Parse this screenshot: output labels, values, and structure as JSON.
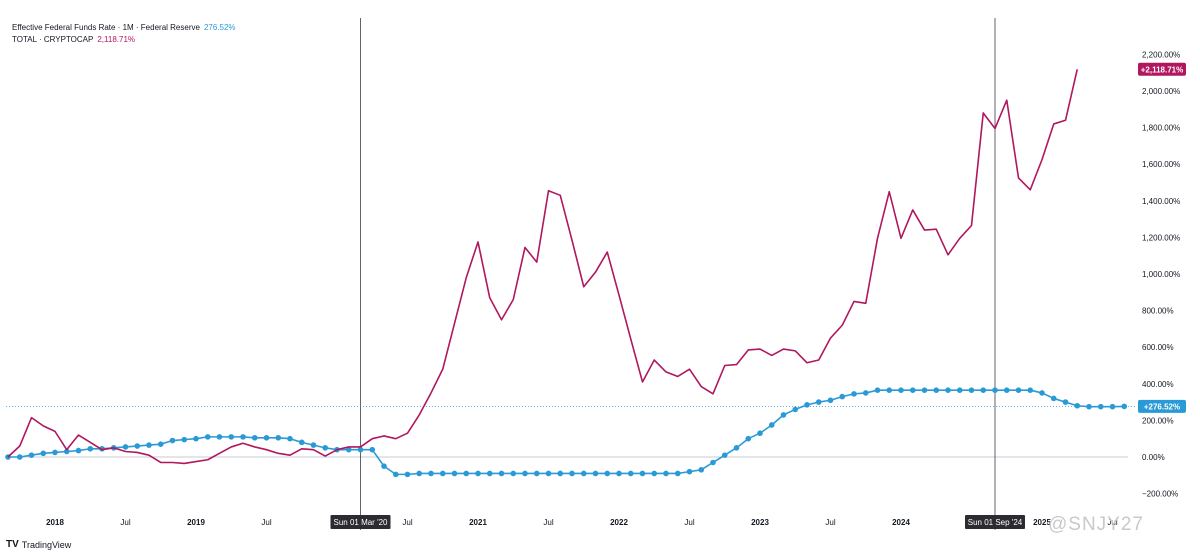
{
  "legend": [
    {
      "label": "Effective Federal Funds Rate · 1M · Federal Reserve",
      "value": "276.52%",
      "color": "#2a9ad6"
    },
    {
      "label": "TOTAL · CRYPTOCAP",
      "value": "2,118.71%",
      "color": "#b0175f"
    }
  ],
  "footer": {
    "brand": "TradingView",
    "logo": "TV"
  },
  "watermark": "@SNJY27",
  "chart_data": {
    "type": "line",
    "y_ticks": [
      -200,
      0,
      200,
      400,
      600,
      800,
      1000,
      1200,
      1400,
      1600,
      1800,
      2000,
      2200
    ],
    "y_tick_labels": [
      "−200.00%",
      "0.00%",
      "200.00%",
      "400.00%",
      "600.00%",
      "800.00%",
      "1,000.00%",
      "1,200.00%",
      "1,400.00%",
      "1,600.00%",
      "1,800.00%",
      "2,000.00%",
      "2,200.00%"
    ],
    "ylim": [
      -250,
      2250
    ],
    "x_range": [
      "2017-09",
      "2025-10"
    ],
    "x_ticks": [
      {
        "month": "2018-01",
        "label": "2018",
        "major": true
      },
      {
        "month": "2018-07",
        "label": "Jul",
        "major": false
      },
      {
        "month": "2019-01",
        "label": "2019",
        "major": true
      },
      {
        "month": "2019-07",
        "label": "Jul",
        "major": false
      },
      {
        "month": "2020-07",
        "label": "Jul",
        "major": false
      },
      {
        "month": "2021-01",
        "label": "2021",
        "major": true
      },
      {
        "month": "2021-07",
        "label": "Jul",
        "major": false
      },
      {
        "month": "2022-01",
        "label": "2022",
        "major": true
      },
      {
        "month": "2022-07",
        "label": "Jul",
        "major": false
      },
      {
        "month": "2023-01",
        "label": "2023",
        "major": true
      },
      {
        "month": "2023-07",
        "label": "Jul",
        "major": false
      },
      {
        "month": "2024-01",
        "label": "2024",
        "major": true
      },
      {
        "month": "2025-01",
        "label": "2025",
        "major": true
      },
      {
        "month": "2025-07",
        "label": "Jul",
        "major": false
      }
    ],
    "crosshairs": [
      {
        "month": "2020-03",
        "label": "Sun 01 Mar '20"
      },
      {
        "month": "2024-09",
        "label": "Sun 01 Sep '24"
      }
    ],
    "series": [
      {
        "name": "TOTAL · CRYPTOCAP",
        "color": "#b0175f",
        "marker": false,
        "last_label": "+2,118.71%",
        "start": "2017-09",
        "values": [
          0,
          60,
          215,
          170,
          140,
          40,
          120,
          80,
          40,
          50,
          30,
          25,
          10,
          -30,
          -30,
          -35,
          -25,
          -15,
          20,
          55,
          75,
          55,
          40,
          20,
          10,
          45,
          40,
          5,
          40,
          55,
          55,
          100,
          115,
          100,
          130,
          230,
          350,
          480,
          730,
          980,
          1175,
          870,
          750,
          860,
          1145,
          1065,
          1455,
          1430,
          1185,
          930,
          1010,
          1120,
          885,
          645,
          410,
          530,
          465,
          440,
          480,
          385,
          345,
          500,
          505,
          585,
          590,
          555,
          590,
          580,
          515,
          530,
          650,
          720,
          850,
          840,
          1195,
          1450,
          1195,
          1350,
          1240,
          1245,
          1105,
          1195,
          1265,
          1880,
          1795,
          1950,
          1525,
          1460,
          1625,
          1820,
          1840,
          2118.71
        ]
      },
      {
        "name": "Effective Federal Funds Rate · 1M · Federal Reserve",
        "color": "#2a9ad6",
        "marker": true,
        "last_label": "+276.52%",
        "start": "2017-09",
        "values": [
          0,
          0,
          10,
          20,
          25,
          30,
          35,
          45,
          45,
          50,
          55,
          60,
          65,
          70,
          90,
          95,
          100,
          110,
          110,
          110,
          110,
          105,
          105,
          105,
          100,
          80,
          65,
          50,
          40,
          40,
          40,
          40,
          -50,
          -95,
          -95,
          -90,
          -90,
          -90,
          -90,
          -90,
          -90,
          -90,
          -90,
          -90,
          -90,
          -90,
          -90,
          -90,
          -90,
          -90,
          -90,
          -90,
          -90,
          -90,
          -90,
          -90,
          -90,
          -90,
          -80,
          -70,
          -30,
          10,
          50,
          100,
          130,
          175,
          230,
          260,
          285,
          300,
          310,
          330,
          345,
          350,
          365,
          365,
          365,
          365,
          365,
          365,
          365,
          365,
          365,
          365,
          365,
          365,
          365,
          365,
          350,
          320,
          300,
          280,
          275,
          275,
          275,
          276.52
        ]
      }
    ]
  }
}
